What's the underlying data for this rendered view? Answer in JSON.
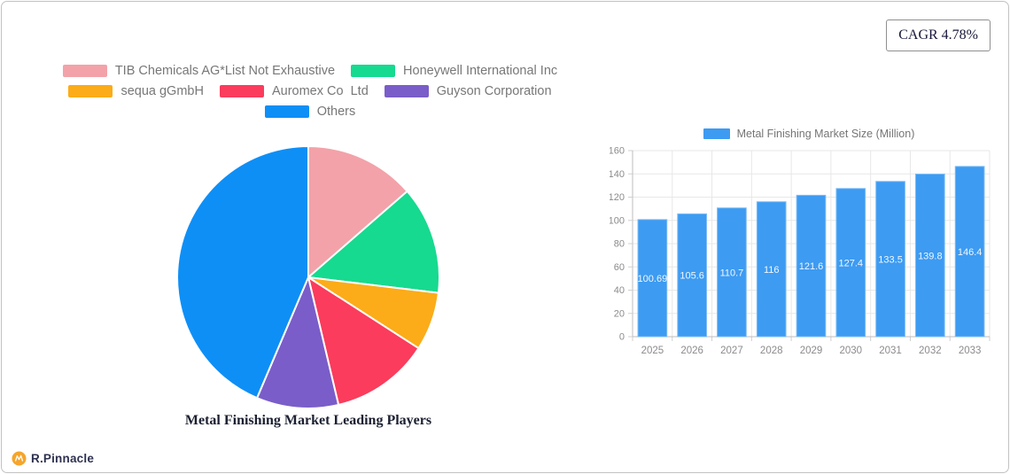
{
  "header": {
    "cagr_label": "CAGR 4.78%"
  },
  "footer": {
    "brand_name": "R.Pinnacle",
    "brand_color": "#f7a googlers52b"
  },
  "chart_data": [
    {
      "type": "pie",
      "title": "Metal Finishing Market Leading Players",
      "labels": [
        "TIB Chemicals AG*List Not Exhaustive",
        "Honeywell International Inc",
        "sequa gGmbH",
        "Auromex Co  Ltd",
        "Guyson Corporation",
        "Others"
      ],
      "values_percent": [
        13.6,
        13.3,
        7.2,
        12.2,
        10.1,
        43.6
      ],
      "colors": [
        "#f3a2a9",
        "#16da8f",
        "#fbac18",
        "#fb3c5c",
        "#7a5dc9",
        "#0e8ff6"
      ],
      "start_angle_deg": 0,
      "direction": "clockwise",
      "legend_position": "top",
      "slice_border_color": "#ffffff"
    },
    {
      "type": "bar",
      "legend_label": "Metal Finishing Market Size (Million)",
      "categories": [
        "2025",
        "2026",
        "2027",
        "2028",
        "2029",
        "2030",
        "2031",
        "2032",
        "2033"
      ],
      "values": [
        100.69,
        105.6,
        110.7,
        116,
        121.6,
        127.4,
        133.5,
        139.8,
        146.4
      ],
      "value_labels": [
        "100.69",
        "105.6",
        "110.7",
        "116",
        "121.6",
        "127.4",
        "133.5",
        "139.8",
        "146.4"
      ],
      "bar_color": "#3d9bf2",
      "bar_border_color": "#7cbcf5",
      "value_label_color": "#f2f7fd",
      "axis_text_color": "#8b8b8b",
      "grid_color": "#e7e7e7",
      "ylabel_ticks": [
        0,
        20,
        40,
        60,
        80,
        100,
        120,
        140,
        160
      ],
      "ylim": [
        0,
        160
      ],
      "grid": true,
      "legend_position": "top"
    }
  ]
}
